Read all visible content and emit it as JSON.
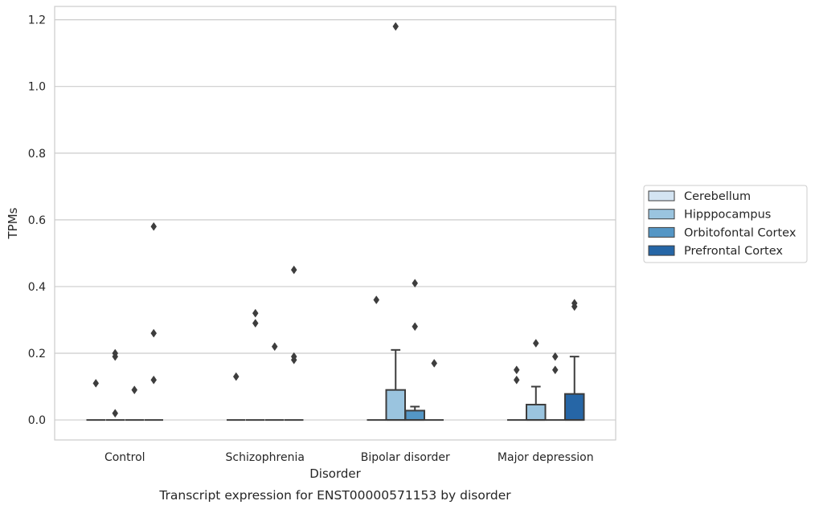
{
  "chart_data": {
    "type": "box",
    "caption": "Transcript expression for ENST00000571153 by disorder",
    "xlabel": "Disorder",
    "ylabel": "TPMs",
    "ylim": [
      -0.06,
      1.24
    ],
    "yticks": [
      "0.0",
      "0.2",
      "0.4",
      "0.6",
      "0.8",
      "1.0",
      "1.2"
    ],
    "grid": "horizontal",
    "legend_position": "right",
    "categories": [
      "Control",
      "Schizophrenia",
      "Bipolar disorder",
      "Major depression"
    ],
    "series": [
      {
        "name": "Cerebellum",
        "color": "#d4e4f2",
        "boxes": [
          {
            "q1": 0,
            "median": 0,
            "q3": 0,
            "whislo": 0,
            "whishi": 0,
            "fliers": [
              0.11
            ]
          },
          {
            "q1": 0,
            "median": 0,
            "q3": 0,
            "whislo": 0,
            "whishi": 0,
            "fliers": [
              0.13
            ]
          },
          {
            "q1": 0,
            "median": 0,
            "q3": 0,
            "whislo": 0,
            "whishi": 0,
            "fliers": [
              0.36
            ]
          },
          {
            "q1": 0,
            "median": 0,
            "q3": 0,
            "whislo": 0,
            "whishi": 0,
            "fliers": [
              0.12,
              0.15
            ]
          }
        ]
      },
      {
        "name": "Hipppocampus",
        "color": "#9ac4df",
        "boxes": [
          {
            "q1": 0,
            "median": 0,
            "q3": 0,
            "whislo": 0,
            "whishi": 0,
            "fliers": [
              0.02,
              0.19,
              0.2
            ]
          },
          {
            "q1": 0,
            "median": 0,
            "q3": 0,
            "whislo": 0,
            "whishi": 0,
            "fliers": [
              0.29,
              0.32
            ]
          },
          {
            "q1": 0,
            "median": 0,
            "q3": 0.09,
            "whislo": 0,
            "whishi": 0.21,
            "fliers": [
              1.18
            ]
          },
          {
            "q1": 0,
            "median": 0,
            "q3": 0.046,
            "whislo": 0,
            "whishi": 0.1,
            "fliers": [
              0.23
            ]
          }
        ]
      },
      {
        "name": "Orbitofontal Cortex",
        "color": "#5496c5",
        "boxes": [
          {
            "q1": 0,
            "median": 0,
            "q3": 0,
            "whislo": 0,
            "whishi": 0,
            "fliers": [
              0.09
            ]
          },
          {
            "q1": 0,
            "median": 0,
            "q3": 0,
            "whislo": 0,
            "whishi": 0,
            "fliers": [
              0.22
            ]
          },
          {
            "q1": 0,
            "median": 0,
            "q3": 0.028,
            "whislo": 0,
            "whishi": 0.04,
            "fliers": [
              0.28,
              0.41
            ]
          },
          {
            "q1": 0,
            "median": 0,
            "q3": 0,
            "whislo": 0,
            "whishi": 0,
            "fliers": [
              0.15,
              0.19
            ]
          }
        ]
      },
      {
        "name": "Prefrontal Cortex",
        "color": "#2666a6",
        "boxes": [
          {
            "q1": 0,
            "median": 0,
            "q3": 0,
            "whislo": 0,
            "whishi": 0,
            "fliers": [
              0.12,
              0.26,
              0.58
            ]
          },
          {
            "q1": 0,
            "median": 0,
            "q3": 0,
            "whislo": 0,
            "whishi": 0,
            "fliers": [
              0.18,
              0.19,
              0.45
            ]
          },
          {
            "q1": 0,
            "median": 0,
            "q3": 0,
            "whislo": 0,
            "whishi": 0,
            "fliers": [
              0.17
            ]
          },
          {
            "q1": 0,
            "median": 0,
            "q3": 0.078,
            "whislo": 0,
            "whishi": 0.19,
            "fliers": [
              0.34,
              0.35
            ]
          }
        ]
      }
    ]
  }
}
